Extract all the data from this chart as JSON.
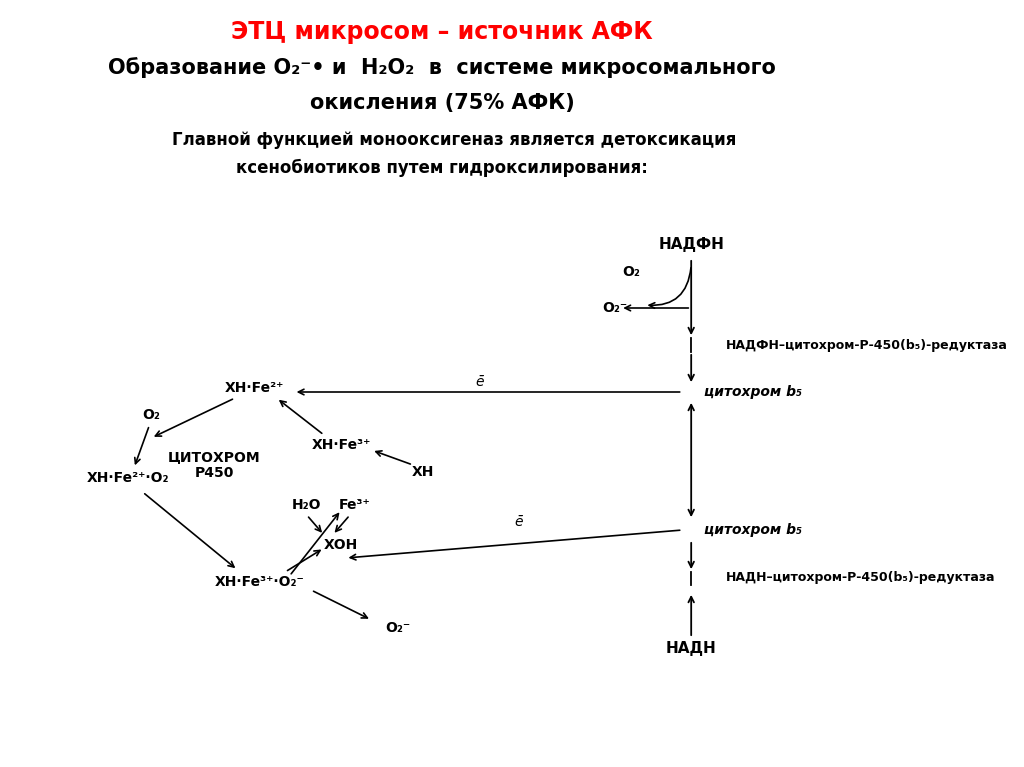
{
  "bg_color": "#ffffff",
  "title1": "ЭТЦ микросом – источник АФК",
  "title2_line1": "Образование O₂⁻• и  H₂O₂  в  системе микросомального",
  "title2_line2": "окисления (75% АФК)",
  "sub1": "    Главной функцией монооксигеназ является детоксикация",
  "sub2": "ксенобиотиков путем гидроксилирования:"
}
